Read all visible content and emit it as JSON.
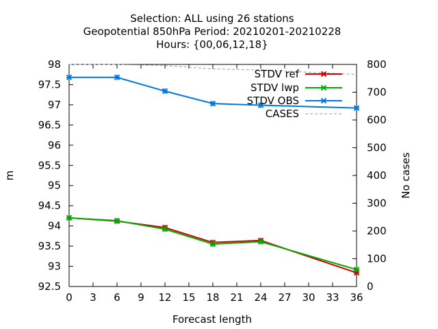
{
  "chart_data": {
    "type": "line",
    "title_lines": [
      "Selection: ALL using    26 stations",
      "Geopotential 850hPa   Period: 20210201-20210228",
      "Hours: {00,06,12,18}"
    ],
    "xlabel": "Forecast length",
    "ylabel": "m",
    "y2label": "No cases",
    "xlim": [
      0,
      36
    ],
    "ylim": [
      92.5,
      98
    ],
    "y2lim": [
      0,
      800
    ],
    "xticks": [
      0,
      3,
      6,
      9,
      12,
      15,
      18,
      21,
      24,
      27,
      30,
      33,
      36
    ],
    "yticks": [
      92.5,
      93,
      93.5,
      94,
      94.5,
      95,
      95.5,
      96,
      96.5,
      97,
      97.5,
      98
    ],
    "y2ticks": [
      0,
      100,
      200,
      300,
      400,
      500,
      600,
      700,
      800
    ],
    "legend_position": "top-right",
    "series": [
      {
        "name": "STDV ref",
        "color": "#cc0000",
        "axis": "y",
        "marker": "cross",
        "x": [
          0,
          6,
          12,
          18,
          24,
          36
        ],
        "y": [
          94.2,
          94.12,
          93.96,
          93.59,
          93.64,
          92.84
        ]
      },
      {
        "name": "STDV lwp",
        "color": "#00aa00",
        "axis": "y",
        "marker": "cross",
        "x": [
          0,
          6,
          12,
          18,
          24,
          36
        ],
        "y": [
          94.2,
          94.13,
          93.92,
          93.55,
          93.61,
          92.92
        ]
      },
      {
        "name": "STDV OBS",
        "color": "#0077dd",
        "axis": "y",
        "marker": "cross",
        "x": [
          0,
          6,
          12,
          18,
          24,
          36
        ],
        "y": [
          97.68,
          97.68,
          97.34,
          97.03,
          96.99,
          96.92
        ]
      },
      {
        "name": "CASES",
        "color": "#999999",
        "axis": "y2",
        "dashed": true,
        "x": [
          0,
          6,
          12,
          18,
          24,
          36
        ],
        "y": [
          800,
          800,
          796,
          784,
          780,
          764
        ]
      }
    ]
  }
}
